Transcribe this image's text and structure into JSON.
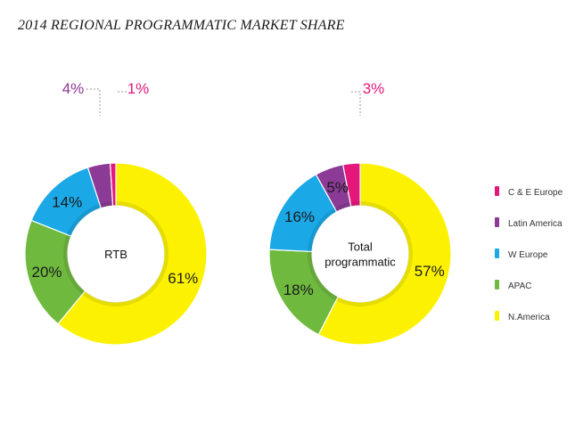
{
  "title": "2014 REGIONAL PROGRAMMATIC MARKET SHARE",
  "chart_data": [
    {
      "type": "pie",
      "center_label": [
        "RTB"
      ],
      "categories": [
        "N.America",
        "APAC",
        "W Europe",
        "Latin America",
        "C & E Europe"
      ],
      "values": [
        61,
        20,
        14,
        4,
        1
      ],
      "labels": [
        "61%",
        "20%",
        "14%",
        "4%",
        "1%"
      ],
      "colors": [
        "#fcf200",
        "#6fb93f",
        "#1aa8e6",
        "#8b3a95",
        "#e5177b"
      ]
    },
    {
      "type": "pie",
      "center_label": [
        "Total",
        "programmatic"
      ],
      "categories": [
        "N.America",
        "APAC",
        "W Europe",
        "Latin America",
        "C & E Europe"
      ],
      "values": [
        57,
        18,
        16,
        5,
        3
      ],
      "labels": [
        "57%",
        "18%",
        "16%",
        "5%",
        "3%"
      ],
      "colors": [
        "#fcf200",
        "#6fb93f",
        "#1aa8e6",
        "#8b3a95",
        "#e5177b"
      ]
    }
  ],
  "legend": {
    "items": [
      {
        "label": "C & E Europe",
        "color": "#e5177b"
      },
      {
        "label": "Latin America",
        "color": "#8b3a95"
      },
      {
        "label": "W Europe",
        "color": "#1aa8e6"
      },
      {
        "label": "APAC",
        "color": "#6fb93f"
      },
      {
        "label": "N.America",
        "color": "#fcf200"
      }
    ]
  },
  "colors": {
    "label_dark": "#1a1a1a",
    "label_magenta": "#e5177b",
    "label_purple": "#8b3a95",
    "leader_line": "#999999"
  }
}
